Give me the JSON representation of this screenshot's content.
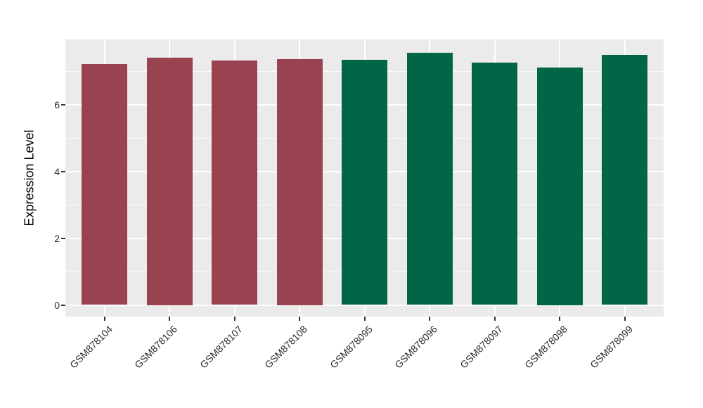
{
  "chart_data": {
    "type": "bar",
    "title": "",
    "xlabel": "",
    "ylabel": "Expression Level",
    "categories": [
      "GSM878104",
      "GSM878106",
      "GSM878107",
      "GSM878108",
      "GSM878095",
      "GSM878096",
      "GSM878097",
      "GSM878098",
      "GSM878099"
    ],
    "values": [
      7.21,
      7.4,
      7.31,
      7.35,
      7.33,
      7.54,
      7.26,
      7.1,
      7.49
    ],
    "bar_colors": [
      "#9A4350",
      "#9A4350",
      "#9A4350",
      "#9A4350",
      "#016648",
      "#016648",
      "#016648",
      "#016648",
      "#016648"
    ],
    "group_colors": {
      "red_group": "#9A4350",
      "green_group": "#016648"
    },
    "y_ticks": [
      0,
      2,
      4,
      6
    ],
    "y_minor_ticks": [
      1,
      3,
      5,
      7
    ],
    "ylim": [
      0,
      7.95
    ],
    "grid": true,
    "legend": "none",
    "panel_background": "#EBEBEB",
    "grid_color": "#FFFFFF",
    "axis_text_color": "#2B2B2B"
  }
}
